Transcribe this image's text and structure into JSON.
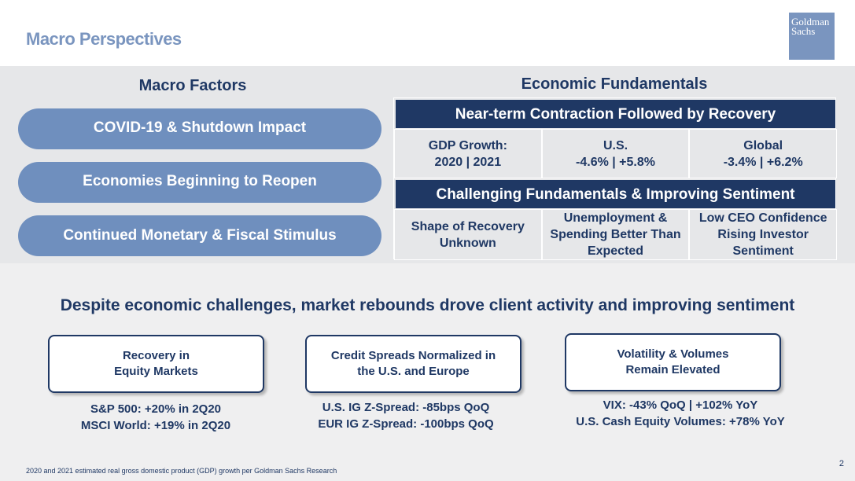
{
  "header": {
    "title": "Macro Perspectives",
    "logo_line1": "Goldman",
    "logo_line2": "Sachs"
  },
  "factors": {
    "title": "Macro Factors",
    "items": [
      "COVID-19 & Shutdown Impact",
      "Economies Beginning to Reopen",
      "Continued Monetary & Fiscal Stimulus"
    ]
  },
  "fundamentals": {
    "title": "Economic Fundamentals",
    "header1": "Near-term Contraction Followed by Recovery",
    "row1": [
      "GDP Growth:\n2020 | 2021",
      "U.S.\n-4.6% | +5.8%",
      "Global\n-3.4% | +6.2%"
    ],
    "header2": "Challenging Fundamentals & Improving Sentiment",
    "row2": [
      "Shape of Recovery\nUnknown",
      "Unemployment &\nSpending Better Than\nExpected",
      "Low CEO Confidence\nRising Investor\nSentiment"
    ]
  },
  "headline": "Despite economic challenges, market rebounds drove client activity and improving sentiment",
  "cards": [
    {
      "title": "Recovery in\nEquity Markets",
      "stat": "S&P 500: +20% in 2Q20\nMSCI World: +19% in 2Q20"
    },
    {
      "title": "Credit Spreads Normalized in\nthe U.S. and Europe",
      "stat": "U.S. IG Z-Spread: -85bps QoQ\nEUR IG Z-Spread: -100bps QoQ"
    },
    {
      "title": "Volatility & Volumes\nRemain Elevated",
      "stat": "VIX: -43% QoQ | +102% YoY\nU.S. Cash Equity Volumes: +78% YoY"
    }
  ],
  "footnote": "2020 and 2021 estimated real gross domestic product (GDP) growth per Goldman Sachs Research",
  "page_number": "2",
  "colors": {
    "navy": "#1f3864",
    "accent": "#6f8fbe",
    "light_blue": "#7a95bf",
    "band": "#e6e7e9"
  }
}
